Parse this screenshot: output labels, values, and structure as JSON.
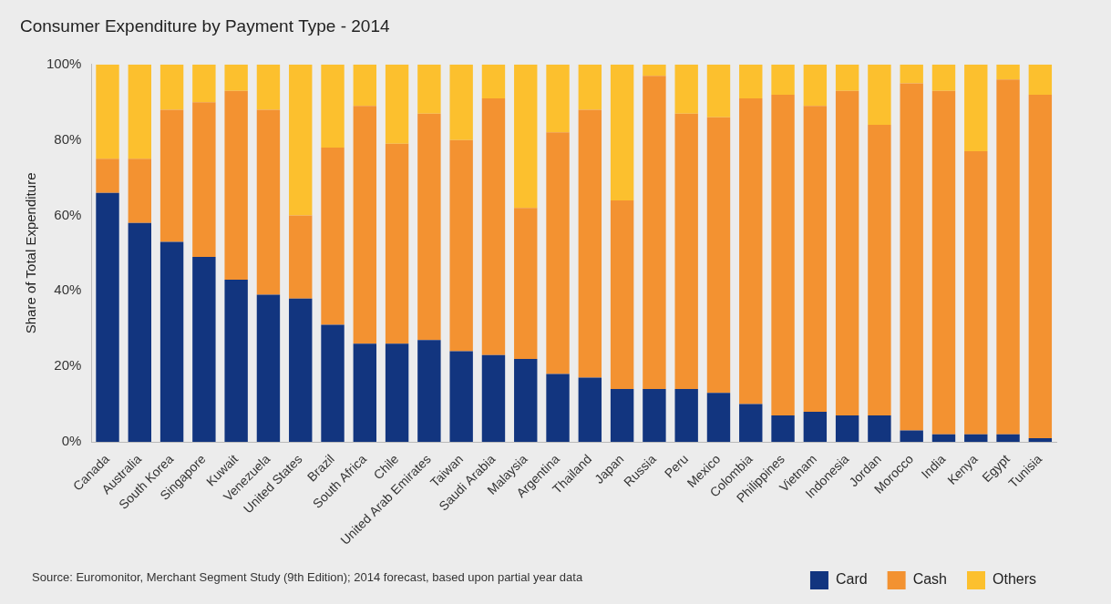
{
  "chart_data": {
    "type": "bar",
    "title": "Consumer Expenditure by Payment Type - 2014",
    "y_label": "Share of Total Expenditure",
    "source": "Source: Euromonitor, Merchant Segment Study (9th Edition); 2014 forecast, based upon partial year data",
    "categories": [
      "Canada",
      "Australia",
      "South Korea",
      "Singapore",
      "Kuwait",
      "Venezuela",
      "United States",
      "Brazil",
      "South Africa",
      "Chile",
      "United Arab Emirates",
      "Taiwan",
      "Saudi Arabia",
      "Malaysia",
      "Argentina",
      "Thailand",
      "Japan",
      "Russia",
      "Peru",
      "Mexico",
      "Colombia",
      "Philippines",
      "Vietnam",
      "Indonesia",
      "Jordan",
      "Morocco",
      "India",
      "Kenya",
      "Egypt",
      "Tunisia"
    ],
    "series": [
      {
        "name": "Card",
        "color": "#12357f",
        "values": [
          66,
          58,
          53,
          49,
          43,
          39,
          38,
          31,
          26,
          26,
          27,
          24,
          23,
          22,
          18,
          17,
          14,
          14,
          14,
          13,
          10,
          7,
          8,
          7,
          7,
          3,
          2,
          2,
          2,
          1
        ]
      },
      {
        "name": "Cash",
        "color": "#f39231",
        "values": [
          9,
          17,
          35,
          41,
          50,
          49,
          22,
          47,
          63,
          53,
          60,
          56,
          68,
          40,
          64,
          71,
          50,
          83,
          73,
          73,
          81,
          85,
          81,
          86,
          77,
          92,
          91,
          75,
          94,
          91
        ]
      },
      {
        "name": "Others",
        "color": "#fcc02e",
        "values": [
          25,
          25,
          12,
          10,
          7,
          12,
          40,
          22,
          11,
          21,
          13,
          20,
          9,
          38,
          18,
          12,
          36,
          3,
          13,
          14,
          9,
          8,
          11,
          7,
          16,
          5,
          7,
          23,
          4,
          8
        ]
      }
    ],
    "ylim": [
      0,
      100
    ],
    "yticks": [
      {
        "value": 0,
        "label": "0%"
      },
      {
        "value": 20,
        "label": "20%"
      },
      {
        "value": 40,
        "label": "40%"
      },
      {
        "value": 60,
        "label": "60%"
      },
      {
        "value": 80,
        "label": "80%"
      },
      {
        "value": 100,
        "label": "100%"
      }
    ],
    "stacked": true,
    "grid": false,
    "legend": "lower right",
    "data_labels": false
  }
}
